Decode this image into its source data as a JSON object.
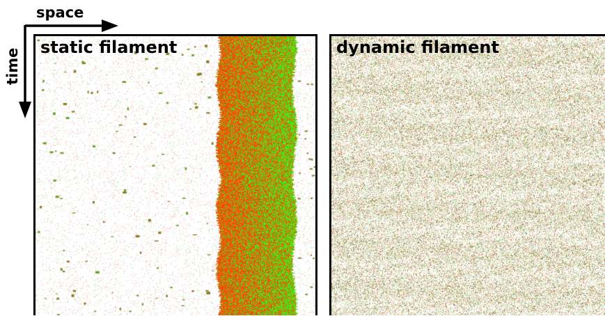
{
  "axes": {
    "horizontal_label": "space",
    "vertical_label": "time"
  },
  "panels": [
    {
      "title": "static filament"
    },
    {
      "title": "dynamic filament"
    }
  ],
  "colors": {
    "red_species": "#ff3a10",
    "green_species": "#20e010",
    "mixed": "#8a7a2a",
    "background": "#ffffff"
  }
}
